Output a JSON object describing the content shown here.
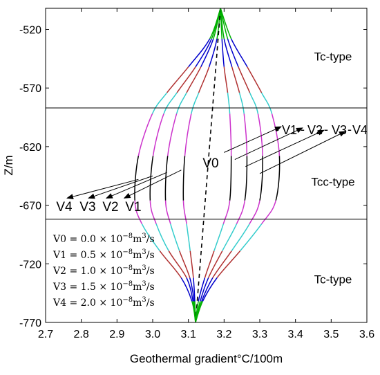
{
  "chart_data": {
    "type": "line",
    "xlabel": "Geothermal gradient°C/100m",
    "ylabel": "Z/m",
    "xlim": [
      2.7,
      3.6
    ],
    "ylim": [
      -770,
      -502
    ],
    "x_ticks": [
      "2.7",
      "2.8",
      "2.9",
      "3.0",
      "3.1",
      "3.2",
      "3.3",
      "3.4",
      "3.5",
      "3.6"
    ],
    "y_ticks": [
      "-520",
      "-570",
      "-620",
      "-670",
      "-720",
      "-770"
    ],
    "x_tick_values": [
      2.7,
      2.8,
      2.9,
      3.0,
      3.1,
      3.2,
      3.3,
      3.4,
      3.5,
      3.6
    ],
    "y_tick_values": [
      -520,
      -570,
      -620,
      -670,
      -720,
      -770
    ],
    "grid": false,
    "boundaries_z": [
      -587,
      -682
    ],
    "zone_labels": [
      {
        "text": "Tc-type",
        "z": -543
      },
      {
        "text": "Tcc-type",
        "z": -650
      },
      {
        "text": "Tc-type",
        "z": -733
      }
    ],
    "segment_colors": [
      "#00b000",
      "#0000cc",
      "#b03030",
      "#33cccc",
      "#cc33cc",
      "#000000",
      "#cc33cc",
      "#33cccc",
      "#b03030",
      "#0000cc",
      "#00b000"
    ],
    "segment_z": [
      -502,
      -528,
      -552,
      -574,
      -592,
      -628,
      -666,
      -686,
      -709,
      -732,
      -752,
      -770
    ],
    "top_point": {
      "x": 3.19,
      "z": -502
    },
    "bottom_point": {
      "x": 3.12,
      "z": -770
    },
    "v0_label": "V0",
    "left_labels": [
      "V4",
      "V3",
      "V2",
      "V1"
    ],
    "right_labels": [
      "V1",
      "V2",
      "V3",
      "V4"
    ],
    "series": [
      {
        "name": "V4",
        "kind": "left",
        "x": [
          3.19,
          3.16,
          3.1,
          3.04,
          2.999,
          2.96,
          2.95,
          2.97,
          3.02,
          3.08,
          3.11,
          3.12
        ]
      },
      {
        "name": "V3",
        "kind": "left",
        "x": [
          3.19,
          3.165,
          3.12,
          3.068,
          3.031,
          3.001,
          2.993,
          3.01,
          3.045,
          3.095,
          3.113,
          3.12
        ]
      },
      {
        "name": "V2",
        "kind": "left",
        "x": [
          3.19,
          3.17,
          3.135,
          3.095,
          3.067,
          3.042,
          3.036,
          3.05,
          3.075,
          3.104,
          3.116,
          3.12
        ]
      },
      {
        "name": "V1",
        "kind": "left",
        "x": [
          3.19,
          3.18,
          3.158,
          3.129,
          3.108,
          3.09,
          3.086,
          3.095,
          3.105,
          3.114,
          3.118,
          3.12
        ]
      },
      {
        "name": "V0",
        "kind": "dashed",
        "x": [
          3.19,
          3.12
        ]
      },
      {
        "name": "V1",
        "kind": "right",
        "x": [
          3.19,
          3.194,
          3.2,
          3.21,
          3.216,
          3.22,
          3.216,
          3.198,
          3.172,
          3.146,
          3.128,
          3.12
        ]
      },
      {
        "name": "V2",
        "kind": "right",
        "x": [
          3.19,
          3.2,
          3.222,
          3.243,
          3.256,
          3.264,
          3.258,
          3.235,
          3.195,
          3.156,
          3.133,
          3.12
        ]
      },
      {
        "name": "V3",
        "kind": "right",
        "x": [
          3.19,
          3.21,
          3.24,
          3.272,
          3.295,
          3.308,
          3.3,
          3.271,
          3.221,
          3.168,
          3.137,
          3.12
        ]
      },
      {
        "name": "V4",
        "kind": "right",
        "x": [
          3.19,
          3.22,
          3.265,
          3.305,
          3.334,
          3.355,
          3.345,
          3.305,
          3.245,
          3.18,
          3.14,
          3.12
        ]
      }
    ],
    "legend_lines": [
      {
        "label": "V0",
        "value": "0.0"
      },
      {
        "label": "V1",
        "value": "0.5"
      },
      {
        "label": "V2",
        "value": "1.0"
      },
      {
        "label": "V3",
        "value": "1.5"
      },
      {
        "label": "V4",
        "value": "2.0"
      }
    ],
    "legend_unit_prefix": "× 10",
    "legend_exponent": "−8",
    "legend_unit": "m",
    "legend_unit_exp": "3",
    "legend_unit_tail": "/s",
    "annotations": [
      {
        "label": "V4",
        "side": "left",
        "from": [
          2.96,
          -648
        ],
        "to": [
          2.76,
          -664
        ]
      },
      {
        "label": "V3",
        "side": "left",
        "from": [
          3.0,
          -645
        ],
        "to": [
          2.82,
          -664
        ]
      },
      {
        "label": "V2",
        "side": "left",
        "from": [
          3.04,
          -642
        ],
        "to": [
          2.87,
          -664
        ]
      },
      {
        "label": "V1",
        "side": "left",
        "from": [
          3.08,
          -640
        ],
        "to": [
          2.92,
          -664
        ]
      },
      {
        "label": "V1",
        "side": "right",
        "from": [
          3.2,
          -625
        ],
        "to": [
          3.36,
          -603
        ]
      },
      {
        "label": "V2",
        "side": "right",
        "from": [
          3.23,
          -631
        ],
        "to": [
          3.42,
          -604
        ]
      },
      {
        "label": "V3",
        "side": "right",
        "from": [
          3.26,
          -637
        ],
        "to": [
          3.48,
          -606
        ]
      },
      {
        "label": "V4",
        "side": "right",
        "from": [
          3.3,
          -643
        ],
        "to": [
          3.54,
          -607
        ]
      }
    ]
  }
}
